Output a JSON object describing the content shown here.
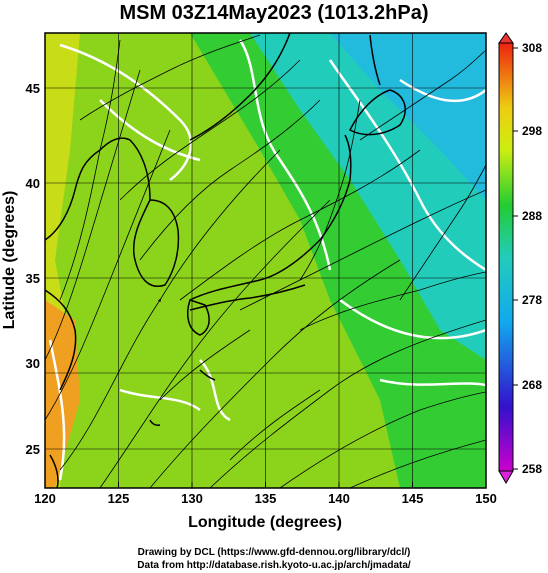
{
  "title": "MSM 03Z14May2023 (1013.2hPa)",
  "xlabel": "Longitude (degrees)",
  "ylabel": "Latitude  (degrees)",
  "x_ticks": [
    "120",
    "125",
    "130",
    "135",
    "140",
    "145",
    "150"
  ],
  "y_ticks": [
    "45",
    "40",
    "35",
    "30",
    "25"
  ],
  "colorbar_ticks": [
    "308",
    "298",
    "288",
    "278",
    "268",
    "258"
  ],
  "footer_line1": "Drawing by DCL (https://www.gfd-dennou.org/library/dcl/)",
  "footer_line2": "Data from http://database.rish.kyoto-u.ac.jp/arch/jmadata/",
  "chart_data": {
    "type": "heatmap",
    "xlim": [
      120,
      150
    ],
    "ylim": [
      23,
      48
    ],
    "color_range": [
      258,
      308
    ],
    "colors": {
      "warm": "#f0a020",
      "mid": "#8cd41c",
      "green": "#33cc33",
      "cool": "#22ccbb",
      "coast": "#000000",
      "contour": "#ffffff"
    }
  }
}
